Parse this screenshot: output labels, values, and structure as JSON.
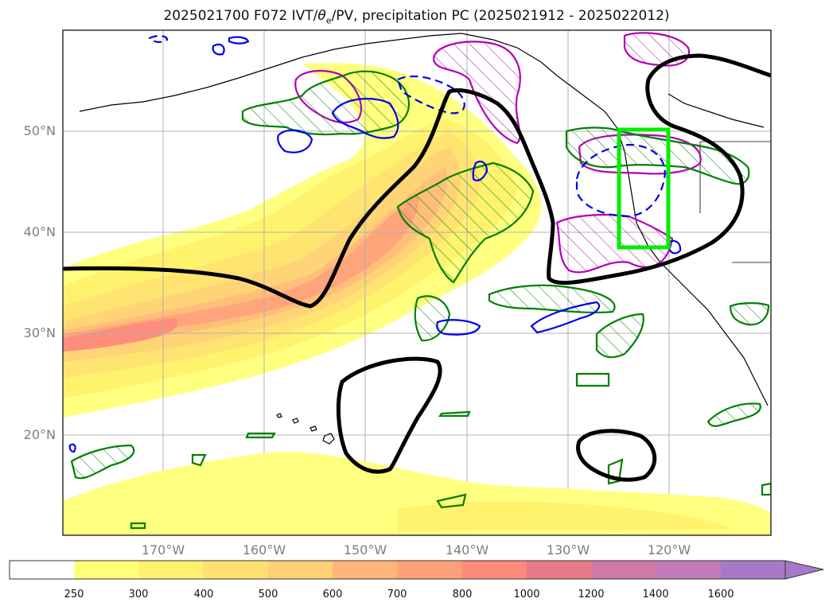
{
  "title": {
    "prefix": "2025021700 F072 IVT/",
    "theta": "θ",
    "sub": "e",
    "suffix": "/PV, precipitation PC (2025021912 - 2025022012)"
  },
  "map": {
    "lat_labels": [
      "50°N",
      "40°N",
      "30°N",
      "20°N"
    ],
    "lon_labels": [
      "170°W",
      "160°W",
      "150°W",
      "140°W",
      "130°W",
      "120°W"
    ],
    "grid": true,
    "box_color": "#00ee00",
    "contour_colors": {
      "theta_e": "#000000",
      "pv_positive": "#008000",
      "pv_negative": "#0000ee",
      "precip": "#b400b4"
    }
  },
  "colorbar": {
    "levels": [
      "250",
      "300",
      "400",
      "500",
      "600",
      "700",
      "800",
      "1000",
      "1200",
      "1400",
      "1600"
    ],
    "colors": [
      "#ffffff",
      "#ffff7a",
      "#fff070",
      "#ffe070",
      "#ffd075",
      "#ffb578",
      "#ffa078",
      "#ff8a7a",
      "#e87a88",
      "#d078a8",
      "#c07ab8",
      "#a878c8"
    ]
  }
}
